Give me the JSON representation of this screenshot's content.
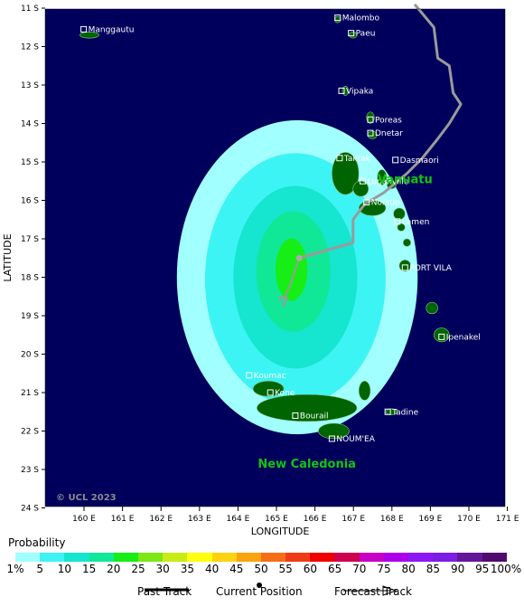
{
  "map": {
    "lat_ticks": [
      "11 S",
      "12 S",
      "13 S",
      "14 S",
      "15 S",
      "16 S",
      "17 S",
      "18 S",
      "19 S",
      "20 S",
      "21 S",
      "22 S",
      "23 S",
      "24 S"
    ],
    "lon_ticks": [
      "160 E",
      "161 E",
      "162 E",
      "163 E",
      "164 E",
      "165 E",
      "166 E",
      "167 E",
      "168 E",
      "169 E",
      "170 E",
      "171 E"
    ],
    "x_axis_title": "LONGITUDE",
    "y_axis_title": "LATITUDE",
    "copyright": "© UCL 2023",
    "ocean_color": "#00005c",
    "land_color": "#006400",
    "track_color": "#9a9a9a",
    "places": [
      {
        "name": "Malombo",
        "lon": 166.6,
        "lat": -11.25
      },
      {
        "name": "Manggautu",
        "lon": 160.0,
        "lat": -11.55
      },
      {
        "name": "Paeu",
        "lon": 166.95,
        "lat": -11.65
      },
      {
        "name": "Vipaka",
        "lon": 166.7,
        "lat": -13.15
      },
      {
        "name": "Poreas",
        "lon": 167.45,
        "lat": -13.9
      },
      {
        "name": "Dnetar",
        "lon": 167.45,
        "lat": -14.25
      },
      {
        "name": "Taktak",
        "lon": 166.65,
        "lat": -14.9
      },
      {
        "name": "Dasmaori",
        "lon": 168.1,
        "lat": -14.95
      },
      {
        "name": "Luganville",
        "lon": 167.25,
        "lat": -15.5
      },
      {
        "name": "Norsup",
        "lon": 167.35,
        "lat": -16.05
      },
      {
        "name": "Lamen",
        "lon": 168.15,
        "lat": -16.55
      },
      {
        "name": "PORT VILA",
        "lon": 168.35,
        "lat": -17.75
      },
      {
        "name": "Ipenakel",
        "lon": 169.3,
        "lat": -19.55
      },
      {
        "name": "Koumac",
        "lon": 164.3,
        "lat": -20.55
      },
      {
        "name": "Kone",
        "lon": 164.85,
        "lat": -21.0
      },
      {
        "name": "Tadine",
        "lon": 167.9,
        "lat": -21.5
      },
      {
        "name": "Bourail",
        "lon": 165.5,
        "lat": -21.6
      },
      {
        "name": "NOUM'EA",
        "lon": 166.45,
        "lat": -22.2
      }
    ],
    "regions": [
      {
        "name": "Vanuatu",
        "lon": 168.35,
        "lat": -15.55
      },
      {
        "name": "New Caledonia",
        "lon": 165.8,
        "lat": -22.95
      }
    ],
    "current_position": {
      "lon": 165.6,
      "lat": -17.5
    },
    "past_track": [
      {
        "lon": 168.6,
        "lat": -10.9
      },
      {
        "lon": 169.1,
        "lat": -11.5
      },
      {
        "lon": 169.2,
        "lat": -12.3
      },
      {
        "lon": 169.5,
        "lat": -12.5
      },
      {
        "lon": 169.6,
        "lat": -13.2
      },
      {
        "lon": 169.8,
        "lat": -13.5
      },
      {
        "lon": 169.5,
        "lat": -14.0
      },
      {
        "lon": 169.2,
        "lat": -14.4
      },
      {
        "lon": 168.8,
        "lat": -14.9
      },
      {
        "lon": 168.4,
        "lat": -15.3
      },
      {
        "lon": 167.8,
        "lat": -15.8
      },
      {
        "lon": 167.3,
        "lat": -16.1
      },
      {
        "lon": 167.0,
        "lat": -16.5
      },
      {
        "lon": 167.0,
        "lat": -17.1
      },
      {
        "lon": 166.3,
        "lat": -17.3
      },
      {
        "lon": 165.6,
        "lat": -17.5
      }
    ],
    "forecast_track": [
      {
        "lon": 165.6,
        "lat": -17.5
      },
      {
        "lon": 165.4,
        "lat": -18.1
      },
      {
        "lon": 165.2,
        "lat": -18.6
      }
    ]
  },
  "legend": {
    "title": "Probability",
    "colors": [
      "#a2ffff",
      "#3cf4f4",
      "#16e5d0",
      "#10e898",
      "#16ee16",
      "#7de816",
      "#c7ec16",
      "#ffff10",
      "#ffd20f",
      "#fba20f",
      "#f56e16",
      "#f03c16",
      "#f00000",
      "#ce0050",
      "#c700c7",
      "#ac00ec",
      "#8d16f5",
      "#7b1ee1",
      "#64169b",
      "#500a6e"
    ],
    "ticks": [
      "1%",
      "5",
      "10",
      "15",
      "20",
      "25",
      "30",
      "35",
      "40",
      "45",
      "50",
      "55",
      "60",
      "65",
      "70",
      "75",
      "80",
      "85",
      "90",
      "95",
      "100%"
    ]
  },
  "key": {
    "past_track": "Past Track",
    "current_position": "Current Position",
    "forecast_track": "Forecast Track"
  }
}
